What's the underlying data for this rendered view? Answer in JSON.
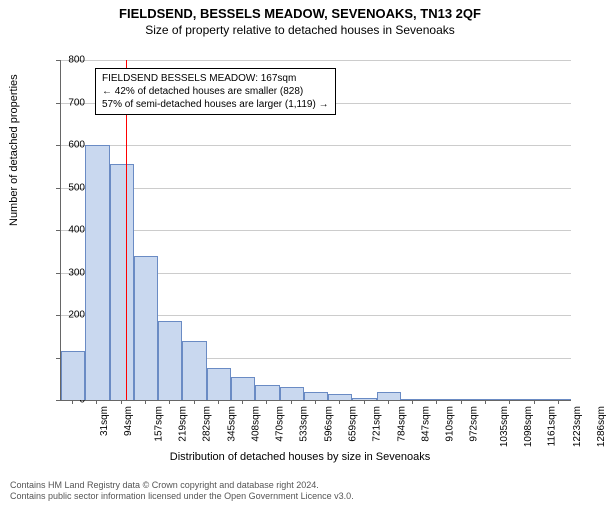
{
  "title": "FIELDSEND, BESSELS MEADOW, SEVENOAKS, TN13 2QF",
  "subtitle": "Size of property relative to detached houses in Sevenoaks",
  "ylabel": "Number of detached properties",
  "xlabel": "Distribution of detached houses by size in Sevenoaks",
  "chart": {
    "type": "histogram",
    "ylim": [
      0,
      800
    ],
    "ytick_step": 100,
    "bar_color": "#c9d8ef",
    "bar_border": "#6a8bc4",
    "grid_color": "#cccccc",
    "background_color": "#ffffff",
    "marker_color": "#ff0000",
    "marker_x": 167,
    "x_start": 31,
    "x_step": 62.7,
    "categories": [
      "31sqm",
      "94sqm",
      "157sqm",
      "219sqm",
      "282sqm",
      "345sqm",
      "408sqm",
      "470sqm",
      "533sqm",
      "596sqm",
      "659sqm",
      "721sqm",
      "784sqm",
      "847sqm",
      "910sqm",
      "972sqm",
      "1035sqm",
      "1098sqm",
      "1161sqm",
      "1223sqm",
      "1286sqm"
    ],
    "values": [
      115,
      600,
      555,
      340,
      185,
      140,
      75,
      55,
      35,
      30,
      18,
      15,
      5,
      18,
      3,
      2,
      2,
      2,
      1,
      1,
      1
    ]
  },
  "annotation": {
    "line1": "FIELDSEND BESSELS MEADOW: 167sqm",
    "line2": "← 42% of detached houses are smaller (828)",
    "line3": "57% of semi-detached houses are larger (1,119) →"
  },
  "footer": {
    "line1": "Contains HM Land Registry data © Crown copyright and database right 2024.",
    "line2": "Contains public sector information licensed under the Open Government Licence v3.0."
  }
}
